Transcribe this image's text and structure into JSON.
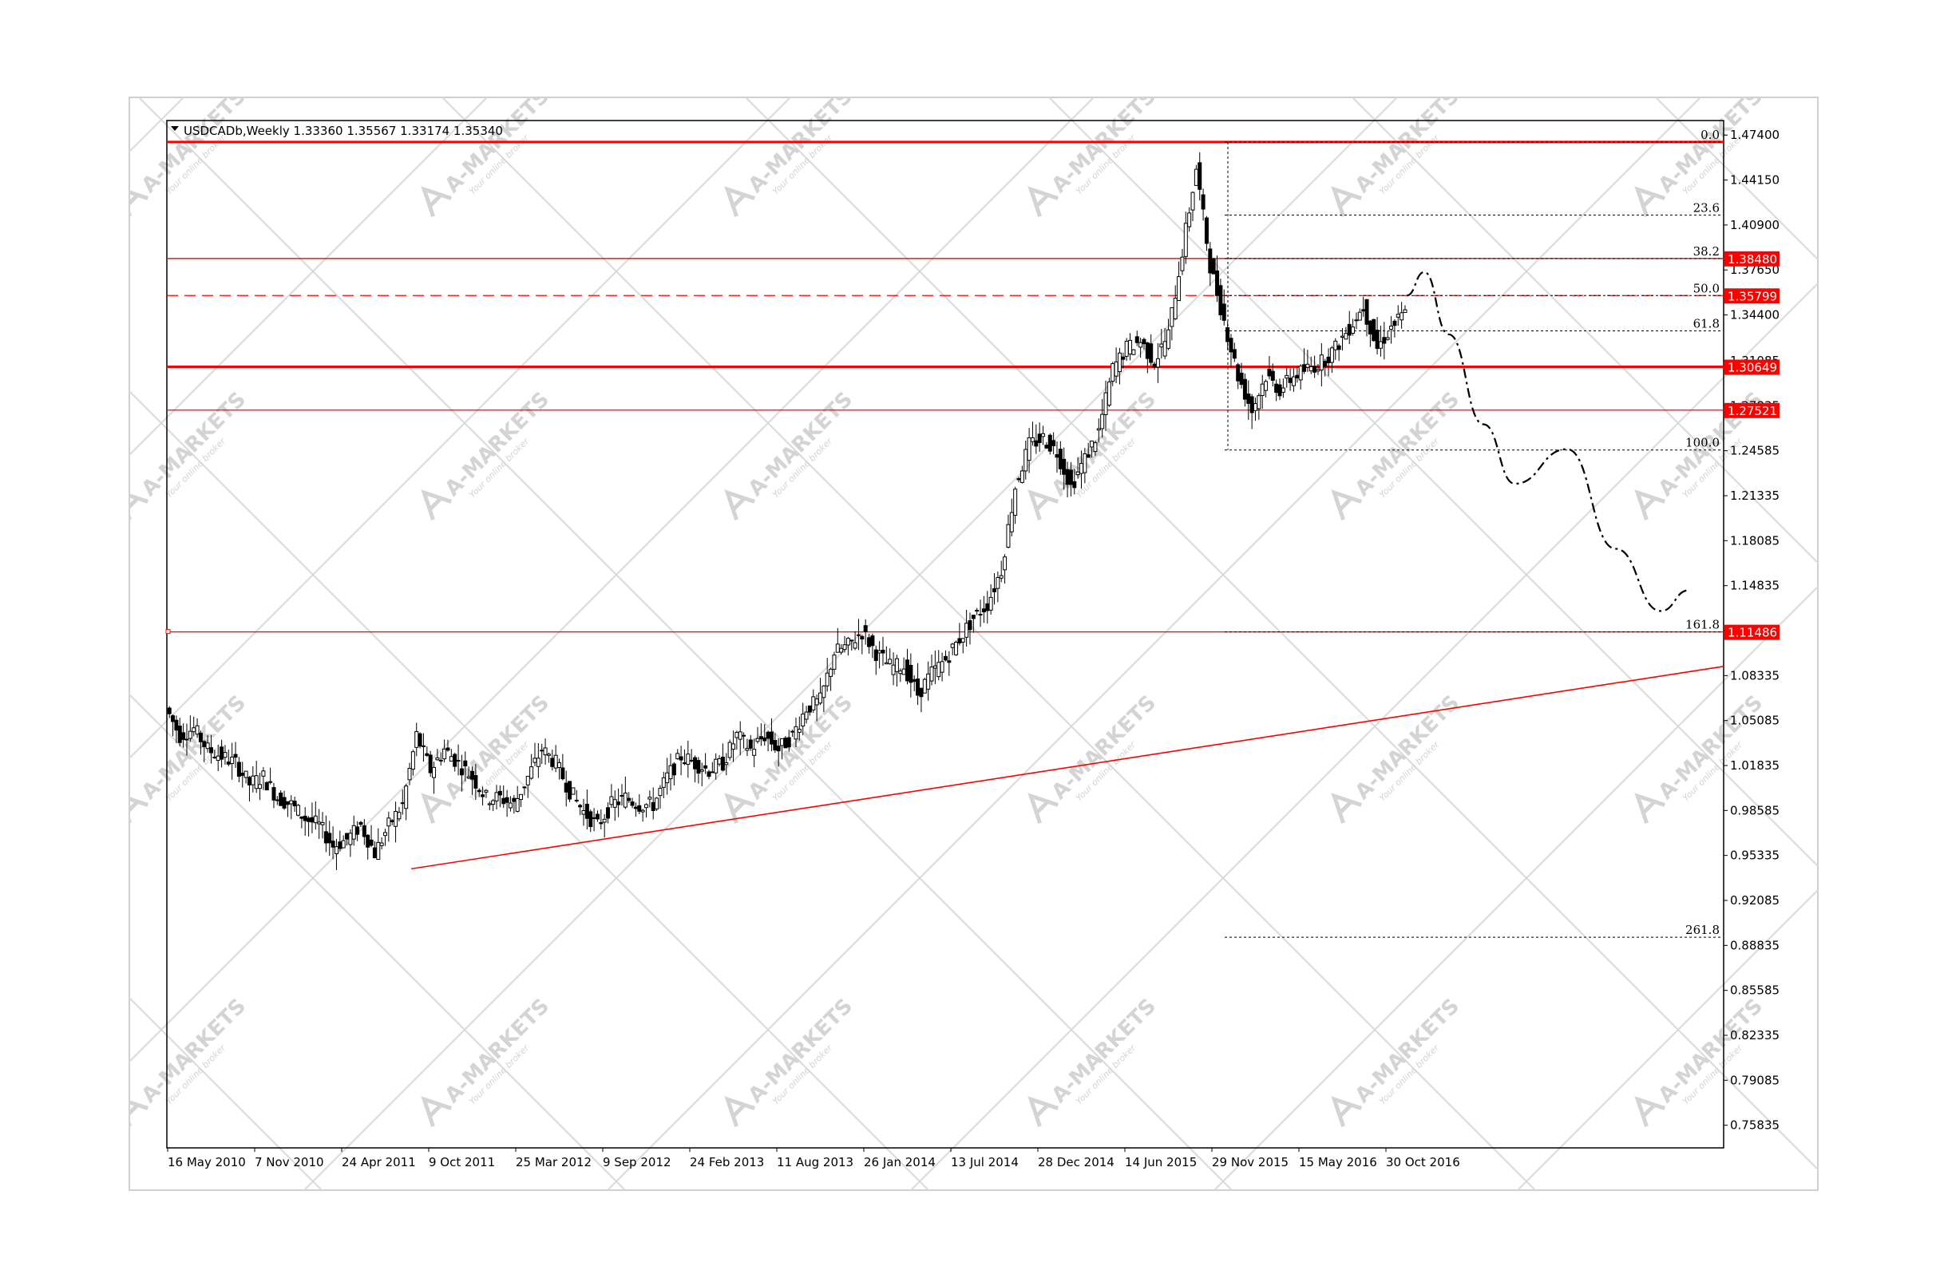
{
  "chart_data": {
    "type": "candlestick",
    "symbol_header": "USDCADb,Weekly  1.33360 1.35567 1.33174 1.35340",
    "ohlc": {
      "open": 1.3336,
      "high": 1.35567,
      "low": 1.33174,
      "close": 1.3534
    },
    "x_labels": [
      "16 May 2010",
      "7 Nov 2010",
      "24 Apr 2011",
      "9 Oct 2011",
      "25 Mar 2012",
      "9 Sep 2012",
      "24 Feb 2013",
      "11 Aug 2013",
      "26 Jan 2014",
      "13 Jul 2014",
      "28 Dec 2014",
      "14 Jun 2015",
      "29 Nov 2015",
      "15 May 2016",
      "30 Oct 2016"
    ],
    "y_ticks": [
      "1.47400",
      "1.44150",
      "1.40900",
      "1.37650",
      "1.34400",
      "1.31085",
      "1.27835",
      "1.24585",
      "1.21335",
      "1.18085",
      "1.14835",
      "1.11585",
      "1.08335",
      "1.05085",
      "1.01835",
      "0.98585",
      "0.95335",
      "0.92085",
      "0.88835",
      "0.85585",
      "0.82335",
      "0.79085",
      "0.75835"
    ],
    "ylim": [
      0.742,
      1.4845
    ],
    "price_tags": [
      "1.38480",
      "1.35799",
      "1.30649",
      "1.27521",
      "1.11486"
    ],
    "fib_levels": [
      {
        "label": "0.0",
        "price": 1.469
      },
      {
        "label": "23.6",
        "price": 1.4162
      },
      {
        "label": "38.2",
        "price": 1.3848
      },
      {
        "label": "50.0",
        "price": 1.358
      },
      {
        "label": "61.8",
        "price": 1.3325
      },
      {
        "label": "100.0",
        "price": 1.2464
      },
      {
        "label": "161.8",
        "price": 1.1149
      },
      {
        "label": "261.8",
        "price": 0.8942
      }
    ],
    "horizontal_levels": [
      1.469,
      1.3848,
      1.358,
      1.3065,
      1.2752,
      1.1149
    ],
    "trendline": {
      "start": {
        "date": "2011-09-18",
        "price": 0.9437
      },
      "end": {
        "date": "2017-12-31",
        "price": 1.09
      }
    },
    "price_path": [
      {
        "date": "2010-05-16",
        "price": 1.06
      },
      {
        "date": "2010-06-13",
        "price": 1.04
      },
      {
        "date": "2010-07-11",
        "price": 1.045
      },
      {
        "date": "2010-08-08",
        "price": 1.03
      },
      {
        "date": "2010-09-05",
        "price": 1.025
      },
      {
        "date": "2010-10-03",
        "price": 1.02
      },
      {
        "date": "2010-10-31",
        "price": 1.005
      },
      {
        "date": "2010-11-28",
        "price": 1.01
      },
      {
        "date": "2010-12-26",
        "price": 0.995
      },
      {
        "date": "2011-01-23",
        "price": 0.99
      },
      {
        "date": "2011-02-20",
        "price": 0.98
      },
      {
        "date": "2011-03-20",
        "price": 0.975
      },
      {
        "date": "2011-04-17",
        "price": 0.96
      },
      {
        "date": "2011-05-15",
        "price": 0.965
      },
      {
        "date": "2011-06-12",
        "price": 0.975
      },
      {
        "date": "2011-07-10",
        "price": 0.955
      },
      {
        "date": "2011-08-07",
        "price": 0.975
      },
      {
        "date": "2011-09-04",
        "price": 0.99
      },
      {
        "date": "2011-10-02",
        "price": 1.04
      },
      {
        "date": "2011-10-30",
        "price": 1.015
      },
      {
        "date": "2011-11-27",
        "price": 1.03
      },
      {
        "date": "2011-12-25",
        "price": 1.02
      },
      {
        "date": "2012-01-22",
        "price": 1.01
      },
      {
        "date": "2012-02-19",
        "price": 0.995
      },
      {
        "date": "2012-03-18",
        "price": 0.995
      },
      {
        "date": "2012-04-15",
        "price": 0.99
      },
      {
        "date": "2012-05-13",
        "price": 1.01
      },
      {
        "date": "2012-06-10",
        "price": 1.03
      },
      {
        "date": "2012-07-08",
        "price": 1.02
      },
      {
        "date": "2012-08-05",
        "price": 1.0
      },
      {
        "date": "2012-09-02",
        "price": 0.985
      },
      {
        "date": "2012-09-30",
        "price": 0.975
      },
      {
        "date": "2012-10-28",
        "price": 0.99
      },
      {
        "date": "2012-11-25",
        "price": 0.995
      },
      {
        "date": "2012-12-23",
        "price": 0.99
      },
      {
        "date": "2013-01-20",
        "price": 0.99
      },
      {
        "date": "2013-02-17",
        "price": 1.01
      },
      {
        "date": "2013-03-17",
        "price": 1.025
      },
      {
        "date": "2013-04-14",
        "price": 1.02
      },
      {
        "date": "2013-05-12",
        "price": 1.015
      },
      {
        "date": "2013-06-09",
        "price": 1.02
      },
      {
        "date": "2013-07-07",
        "price": 1.04
      },
      {
        "date": "2013-08-04",
        "price": 1.03
      },
      {
        "date": "2013-09-01",
        "price": 1.04
      },
      {
        "date": "2013-09-29",
        "price": 1.03
      },
      {
        "date": "2013-10-27",
        "price": 1.04
      },
      {
        "date": "2013-11-24",
        "price": 1.06
      },
      {
        "date": "2013-12-22",
        "price": 1.065
      },
      {
        "date": "2014-01-19",
        "price": 1.1
      },
      {
        "date": "2014-02-16",
        "price": 1.105
      },
      {
        "date": "2014-03-16",
        "price": 1.115
      },
      {
        "date": "2014-04-13",
        "price": 1.1
      },
      {
        "date": "2014-05-11",
        "price": 1.09
      },
      {
        "date": "2014-06-08",
        "price": 1.09
      },
      {
        "date": "2014-07-06",
        "price": 1.07
      },
      {
        "date": "2014-08-03",
        "price": 1.085
      },
      {
        "date": "2014-08-31",
        "price": 1.095
      },
      {
        "date": "2014-09-28",
        "price": 1.11
      },
      {
        "date": "2014-10-26",
        "price": 1.125
      },
      {
        "date": "2014-11-23",
        "price": 1.135
      },
      {
        "date": "2014-12-21",
        "price": 1.16
      },
      {
        "date": "2015-01-18",
        "price": 1.22
      },
      {
        "date": "2015-02-15",
        "price": 1.25
      },
      {
        "date": "2015-03-15",
        "price": 1.255
      },
      {
        "date": "2015-04-12",
        "price": 1.245
      },
      {
        "date": "2015-05-10",
        "price": 1.22
      },
      {
        "date": "2015-06-07",
        "price": 1.24
      },
      {
        "date": "2015-07-05",
        "price": 1.26
      },
      {
        "date": "2015-08-02",
        "price": 1.305
      },
      {
        "date": "2015-08-30",
        "price": 1.32
      },
      {
        "date": "2015-09-27",
        "price": 1.325
      },
      {
        "date": "2015-10-25",
        "price": 1.31
      },
      {
        "date": "2015-11-22",
        "price": 1.33
      },
      {
        "date": "2015-12-20",
        "price": 1.39
      },
      {
        "date": "2016-01-17",
        "price": 1.45
      },
      {
        "date": "2016-02-14",
        "price": 1.38
      },
      {
        "date": "2016-03-13",
        "price": 1.34
      },
      {
        "date": "2016-04-10",
        "price": 1.3
      },
      {
        "date": "2016-05-08",
        "price": 1.275
      },
      {
        "date": "2016-06-05",
        "price": 1.3
      },
      {
        "date": "2016-07-03",
        "price": 1.29
      },
      {
        "date": "2016-07-31",
        "price": 1.3
      },
      {
        "date": "2016-08-28",
        "price": 1.305
      },
      {
        "date": "2016-09-25",
        "price": 1.31
      },
      {
        "date": "2016-10-23",
        "price": 1.32
      },
      {
        "date": "2016-11-20",
        "price": 1.335
      },
      {
        "date": "2016-12-18",
        "price": 1.35
      },
      {
        "date": "2017-01-15",
        "price": 1.32
      },
      {
        "date": "2017-02-12",
        "price": 1.335
      },
      {
        "date": "2017-03-12",
        "price": 1.345
      }
    ],
    "projection_path": [
      {
        "date": "2017-03-12",
        "price": 1.358
      },
      {
        "date": "2017-04-16",
        "price": 1.375
      },
      {
        "date": "2017-06-04",
        "price": 1.33
      },
      {
        "date": "2017-08-13",
        "price": 1.265
      },
      {
        "date": "2017-10-15",
        "price": 1.222
      },
      {
        "date": "2018-01-28",
        "price": 1.247
      },
      {
        "date": "2018-05-06",
        "price": 1.175
      },
      {
        "date": "2018-08-05",
        "price": 1.13
      },
      {
        "date": "2018-09-30",
        "price": 1.145
      }
    ],
    "colors": {
      "level": "#ff0000",
      "tag": "#ff0000",
      "candle": "#000000",
      "fib": "#000000",
      "projection": "#000000",
      "watermark": "#d9d9d9"
    },
    "grid": false,
    "watermark_icon": "a-markets-logo",
    "watermark": {
      "brand": "A-MARKETS",
      "tagline": "Your online broker"
    }
  }
}
